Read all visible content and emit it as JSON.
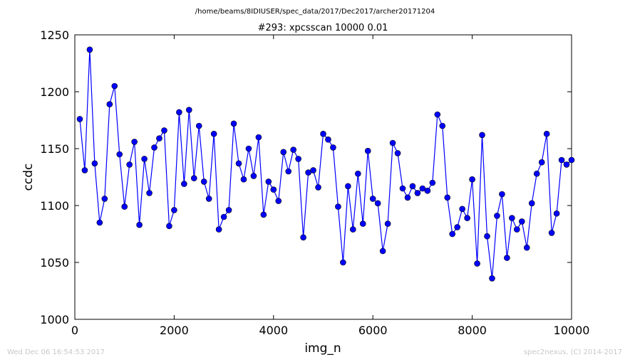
{
  "header": {
    "path": "/home/beams/8IDIUSER/spec_data/2017/Dec2017/archer20171204"
  },
  "footer": {
    "timestamp": "Wed Dec 06 16:54:53 2017",
    "credit": "spec2nexus, (C) 2014-2017"
  },
  "chart_data": {
    "type": "line",
    "title": "#293: xpcsscan 10000 0.01",
    "xlabel": "img_n",
    "ylabel": "ccdc",
    "xlim": [
      0,
      10000
    ],
    "ylim": [
      1000,
      1250
    ],
    "xticks": [
      0,
      2000,
      4000,
      6000,
      8000,
      10000
    ],
    "yticks": [
      1000,
      1050,
      1100,
      1150,
      1200,
      1250
    ],
    "xtick_labels": [
      "0",
      "2000",
      "4000",
      "6000",
      "8000",
      "10000"
    ],
    "ytick_labels": [
      "1000",
      "1050",
      "1100",
      "1150",
      "1200",
      "1250"
    ],
    "grid": false,
    "line_color": "#0000ff",
    "marker": "circle",
    "series": [
      {
        "x": [
          100,
          200,
          300,
          400,
          500,
          600,
          700,
          800,
          900,
          1000,
          1100,
          1200,
          1300,
          1400,
          1500,
          1600,
          1700,
          1800,
          1900,
          2000,
          2100,
          2200,
          2300,
          2400,
          2500,
          2600,
          2700,
          2800,
          2900,
          3000,
          3100,
          3200,
          3300,
          3400,
          3500,
          3600,
          3700,
          3800,
          3900,
          4000,
          4100,
          4200,
          4300,
          4400,
          4500,
          4600,
          4700,
          4800,
          4900,
          5000,
          5100,
          5200,
          5300,
          5400,
          5500,
          5600,
          5700,
          5800,
          5900,
          6000,
          6100,
          6200,
          6300,
          6400,
          6500,
          6600,
          6700,
          6800,
          6900,
          7000,
          7100,
          7200,
          7300,
          7400,
          7500,
          7600,
          7700,
          7800,
          7900,
          8000,
          8100,
          8200,
          8300,
          8400,
          8500,
          8600,
          8700,
          8800,
          8900,
          9000,
          9100,
          9200,
          9300,
          9400,
          9500,
          9600,
          9700,
          9800,
          9900,
          10000
        ],
        "values": [
          1176,
          1131,
          1237,
          1137,
          1085,
          1106,
          1189,
          1205,
          1145,
          1099,
          1136,
          1156,
          1083,
          1141,
          1111,
          1151,
          1159,
          1166,
          1082,
          1096,
          1182,
          1119,
          1184,
          1124,
          1170,
          1121,
          1106,
          1163,
          1079,
          1090,
          1096,
          1172,
          1137,
          1123,
          1150,
          1126,
          1160,
          1092,
          1121,
          1114,
          1104,
          1147,
          1130,
          1149,
          1141,
          1072,
          1129,
          1131,
          1116,
          1163,
          1158,
          1151,
          1099,
          1050,
          1117,
          1079,
          1128,
          1084,
          1148,
          1106,
          1102,
          1060,
          1084,
          1155,
          1146,
          1115,
          1107,
          1117,
          1111,
          1115,
          1113,
          1120,
          1180,
          1170,
          1107,
          1075,
          1081,
          1097,
          1089,
          1123,
          1049,
          1162,
          1073,
          1036,
          1091,
          1110,
          1054,
          1089,
          1079,
          1086,
          1063,
          1102,
          1128,
          1138,
          1163,
          1076,
          1093,
          1140,
          1136,
          1140
        ]
      }
    ]
  }
}
